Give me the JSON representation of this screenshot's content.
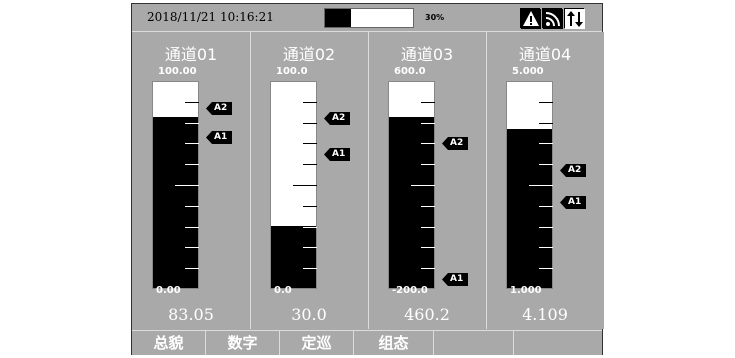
{
  "status": {
    "datetime": "2018/11/21 10:16:21",
    "storage_percent_label": "30%",
    "storage_fraction": 0.3,
    "icons": [
      "alarm-warning-icon",
      "signal-icon",
      "transfer-icon"
    ]
  },
  "channels": [
    {
      "name": "通道01",
      "max": "100.00",
      "min": "0.00",
      "value": "83.05",
      "fill_fraction": 0.83,
      "alarms": [
        {
          "label": "A2",
          "fraction": 0.87
        },
        {
          "label": "A1",
          "fraction": 0.73
        }
      ]
    },
    {
      "name": "通道02",
      "max": "100.0",
      "min": "0.0",
      "value": "30.0",
      "fill_fraction": 0.3,
      "alarms": [
        {
          "label": "A2",
          "fraction": 0.82
        },
        {
          "label": "A1",
          "fraction": 0.65
        }
      ]
    },
    {
      "name": "通道03",
      "max": "600.0",
      "min": "-200.0",
      "value": "460.2",
      "fill_fraction": 0.83,
      "alarms": [
        {
          "label": "A2",
          "fraction": 0.7
        },
        {
          "label": "A1",
          "fraction": 0.05
        }
      ]
    },
    {
      "name": "通道04",
      "max": "5.000",
      "min": "1.000",
      "value": "4.109",
      "fill_fraction": 0.77,
      "alarms": [
        {
          "label": "A2",
          "fraction": 0.57
        },
        {
          "label": "A1",
          "fraction": 0.42
        }
      ]
    }
  ],
  "softkeys": [
    "总貌",
    "数字",
    "定巡",
    "组态",
    "",
    ""
  ],
  "colors": {
    "screen_bg": "#a9a9a9",
    "bar_fill": "#000000",
    "bar_bg": "#ffffff",
    "text": "#ffffff"
  }
}
